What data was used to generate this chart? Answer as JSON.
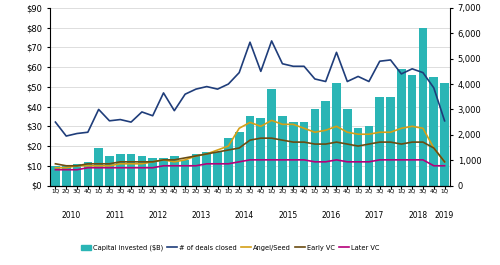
{
  "quarters": [
    "1Q",
    "2Q",
    "3Q",
    "4Q",
    "1Q",
    "2Q",
    "3Q",
    "4Q",
    "1Q",
    "2Q",
    "3Q",
    "4Q",
    "1Q",
    "2Q",
    "3Q",
    "4Q",
    "1Q",
    "2Q",
    "3Q",
    "4Q",
    "1Q",
    "2Q",
    "3Q",
    "4Q",
    "1Q",
    "2Q",
    "3Q",
    "4Q",
    "1Q",
    "2Q",
    "3Q",
    "4Q",
    "1Q",
    "2Q",
    "3Q",
    "4Q",
    "1Q"
  ],
  "years": [
    2010,
    2010,
    2010,
    2010,
    2011,
    2011,
    2011,
    2011,
    2012,
    2012,
    2012,
    2012,
    2013,
    2013,
    2013,
    2013,
    2014,
    2014,
    2014,
    2014,
    2015,
    2015,
    2015,
    2015,
    2016,
    2016,
    2016,
    2016,
    2017,
    2017,
    2017,
    2017,
    2018,
    2018,
    2018,
    2018,
    2019
  ],
  "capital_invested": [
    10,
    10,
    11,
    12,
    19,
    15,
    16,
    16,
    15,
    14,
    14,
    15,
    13,
    16,
    17,
    17,
    24,
    27,
    35,
    34,
    49,
    35,
    32,
    32,
    39,
    43,
    52,
    39,
    29,
    30,
    45,
    45,
    59,
    56,
    80,
    55,
    52
  ],
  "deals_closed": [
    2500,
    1950,
    2050,
    2100,
    3000,
    2550,
    2600,
    2500,
    2900,
    2750,
    3650,
    2950,
    3600,
    3800,
    3900,
    3800,
    4000,
    4450,
    5650,
    4500,
    5700,
    4800,
    4700,
    4700,
    4200,
    4100,
    5250,
    4100,
    4300,
    4100,
    4900,
    4950,
    4400,
    4600,
    4450,
    3850,
    2550
  ],
  "angel_seed": [
    9,
    9,
    10,
    10,
    10,
    10,
    11,
    11,
    11,
    12,
    13,
    12,
    13,
    15,
    16,
    18,
    20,
    29,
    32,
    30,
    33,
    31,
    31,
    29,
    27,
    28,
    30,
    27,
    26,
    26,
    27,
    27,
    29,
    30,
    29,
    19,
    12
  ],
  "early_vc": [
    11,
    10,
    10,
    11,
    11,
    11,
    12,
    12,
    12,
    12,
    13,
    13,
    14,
    15,
    16,
    17,
    18,
    19,
    23,
    24,
    24,
    23,
    22,
    22,
    21,
    21,
    22,
    21,
    20,
    21,
    22,
    22,
    21,
    22,
    22,
    19,
    12
  ],
  "later_vc": [
    8,
    8,
    8,
    9,
    9,
    9,
    9,
    9,
    9,
    9,
    10,
    10,
    10,
    10,
    11,
    11,
    11,
    12,
    13,
    13,
    13,
    13,
    13,
    13,
    12,
    12,
    13,
    12,
    12,
    12,
    13,
    13,
    13,
    13,
    13,
    10,
    10
  ],
  "bar_color": "#2ab5b5",
  "deals_color": "#1f3d7a",
  "angel_color": "#d4a017",
  "early_color": "#6b4c11",
  "later_color": "#b5007a",
  "ylim_left": [
    0,
    90
  ],
  "ylim_right": [
    0,
    7000
  ],
  "yticks_left": [
    0,
    10,
    20,
    30,
    40,
    50,
    60,
    70,
    80,
    90
  ],
  "yticks_right": [
    0,
    1000,
    2000,
    3000,
    4000,
    5000,
    6000,
    7000
  ],
  "legend_labels": [
    "Capital invested ($B)",
    "# of deals closed",
    "Angel/Seed",
    "Early VC",
    "Later VC"
  ],
  "bg_color": "#ffffff",
  "grid_color": "#d0d0d0"
}
